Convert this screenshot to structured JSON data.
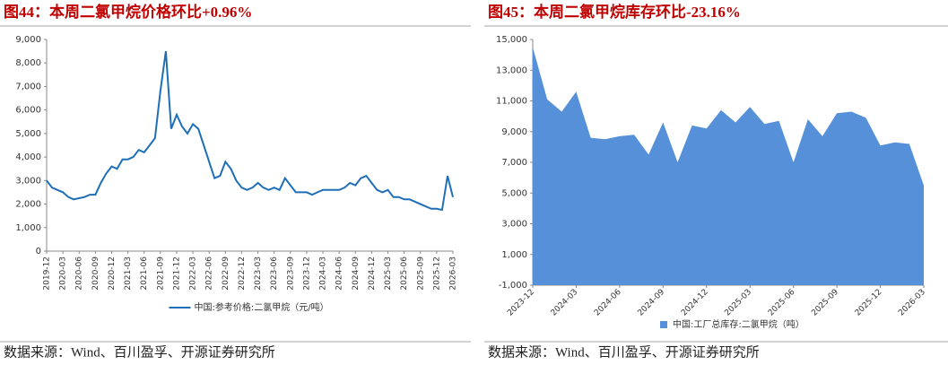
{
  "chart_data": [
    {
      "type": "line",
      "title": "图44：本周二氯甲烷价格环比+0.96%",
      "categories": [
        "2019-12",
        null,
        null,
        "2020-03",
        null,
        null,
        "2020-06",
        null,
        null,
        "2020-09",
        null,
        null,
        "2020-12",
        null,
        null,
        "2021-03",
        null,
        null,
        "2021-06",
        null,
        null,
        "2021-09",
        null,
        null,
        "2021-12",
        null,
        null,
        "2022-03",
        null,
        null,
        "2022-06",
        null,
        null,
        "2022-09",
        null,
        null,
        "2022-12",
        null,
        null,
        "2023-03",
        null,
        null,
        "2023-06",
        null,
        null,
        "2023-09",
        null,
        null,
        "2023-12",
        null,
        null,
        "2024-03",
        null,
        null,
        "2024-06",
        null,
        null,
        "2024-09",
        null,
        null,
        "2024-12",
        null,
        null,
        "2025-03",
        null,
        null,
        "2025-06",
        null,
        null,
        "2025-09",
        null,
        null,
        "2025-12",
        null,
        null,
        "2026-03"
      ],
      "series": [
        {
          "name": "中国:参考价格:二氯甲烷（元/吨）",
          "color": "#1f6fb8",
          "values": [
            3000,
            2700,
            2600,
            2500,
            2300,
            2200,
            2250,
            2300,
            2400,
            2400,
            2900,
            3300,
            3600,
            3500,
            3900,
            3900,
            4000,
            4300,
            4200,
            4500,
            4800,
            6800,
            8500,
            5200,
            5800,
            5300,
            5000,
            5400,
            5200,
            4500,
            3800,
            3100,
            3200,
            3800,
            3500,
            3000,
            2700,
            2600,
            2700,
            2900,
            2700,
            2600,
            2700,
            2600,
            3100,
            2800,
            2500,
            2500,
            2500,
            2400,
            2500,
            2600,
            2600,
            2600,
            2600,
            2700,
            2900,
            2800,
            3100,
            3200,
            2900,
            2600,
            2500,
            2600,
            2300,
            2300,
            2200,
            2200,
            2100,
            2000,
            1900,
            1800,
            1800,
            1750,
            3200,
            2300
          ]
        }
      ],
      "ylim": [
        0,
        9000
      ],
      "yticks": [
        0,
        {
          "value": 1000,
          "label": "1,000"
        },
        {
          "value": 2000,
          "label": "2,000"
        },
        {
          "value": 3000,
          "label": "3,000"
        },
        {
          "value": 4000,
          "label": "4,000"
        },
        {
          "value": 5000,
          "label": "5,000"
        },
        {
          "value": 6000,
          "label": "6,000"
        },
        {
          "value": 7000,
          "label": "7,000"
        },
        {
          "value": 8000,
          "label": "8,000"
        },
        {
          "value": 9000,
          "label": "9,000"
        }
      ],
      "grid": false,
      "legend": "bottom",
      "source": "数据来源：Wind、百川盈孚、开源证券研究所"
    },
    {
      "type": "area",
      "title": "图45：本周二氯甲烷库存环比-23.16%",
      "categories": [
        "2023-12",
        null,
        null,
        "2024-03",
        null,
        null,
        "2024-06",
        null,
        null,
        "2024-09",
        null,
        null,
        "2024-12",
        null,
        null,
        "2025-03",
        null,
        null,
        "2025-06",
        null,
        null,
        "2025-09",
        null,
        null,
        "2025-12",
        null,
        null,
        "2026-03"
      ],
      "series": [
        {
          "name": "中国:工厂总库存:二氯甲烷（吨）",
          "color": "#5590d9",
          "values": [
            14500,
            11100,
            10300,
            11600,
            8600,
            8500,
            8700,
            8800,
            7500,
            9600,
            7000,
            9400,
            9200,
            10400,
            9600,
            10600,
            9500,
            9700,
            7000,
            9800,
            8700,
            10200,
            10300,
            9900,
            8100,
            8300,
            8200,
            5500
          ]
        }
      ],
      "ylim": [
        -1000,
        15000
      ],
      "yticks": [
        {
          "value": -1000,
          "label": "-1,000"
        },
        {
          "value": 1000,
          "label": "1,000"
        },
        {
          "value": 3000,
          "label": "3,000"
        },
        {
          "value": 5000,
          "label": "5,000"
        },
        {
          "value": 7000,
          "label": "7,000"
        },
        {
          "value": 9000,
          "label": "9,000"
        },
        {
          "value": 11000,
          "label": "11,000"
        },
        {
          "value": 13000,
          "label": "13,000"
        },
        {
          "value": 15000,
          "label": "15,000"
        }
      ],
      "grid": false,
      "legend": "bottom",
      "source": "数据来源：Wind、百川盈孚、开源证券研究所"
    }
  ]
}
